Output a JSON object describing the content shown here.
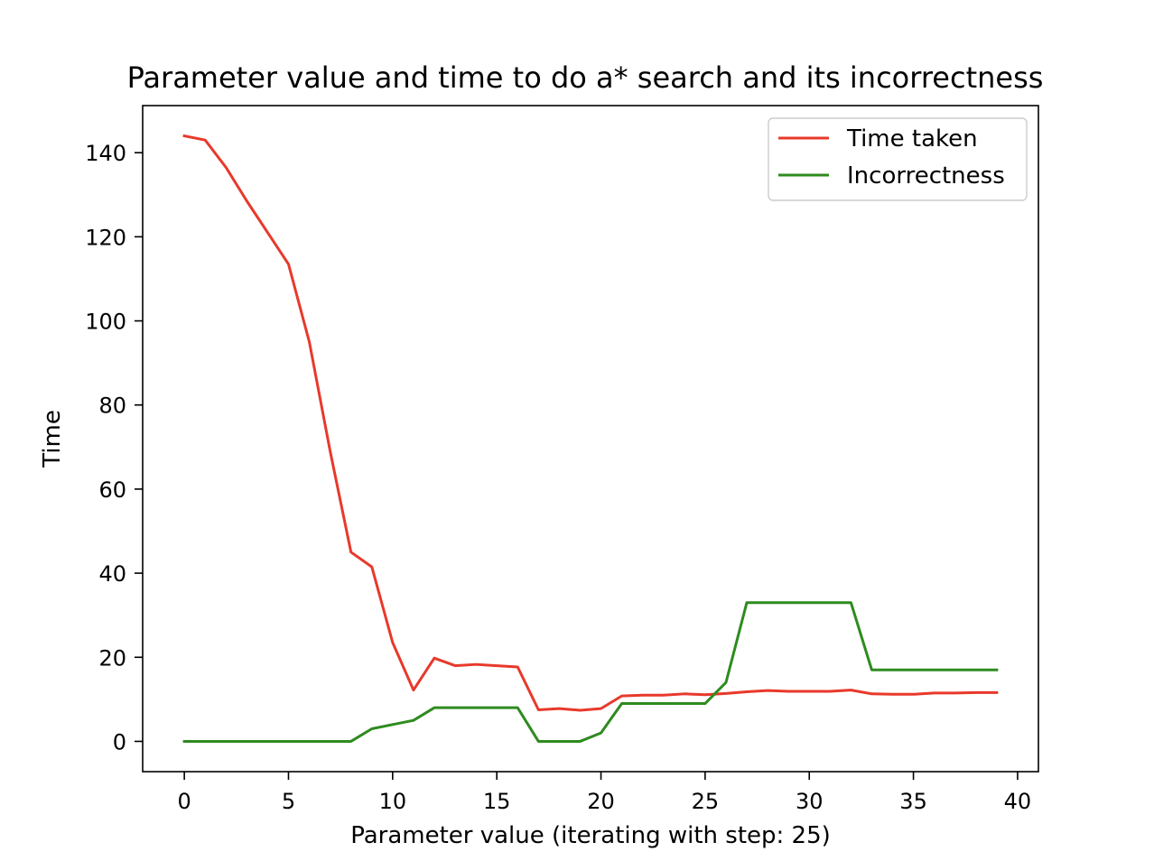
{
  "chart_data": {
    "type": "line",
    "title": "Parameter value and time to do a* search and its incorrectness",
    "xlabel": "Parameter value (iterating with step: 25)",
    "ylabel": "Time",
    "xlim": [
      -2,
      41
    ],
    "ylim": [
      -7.2,
      151.2
    ],
    "xticks": [
      0,
      5,
      10,
      15,
      20,
      25,
      30,
      35,
      40
    ],
    "yticks": [
      0,
      20,
      40,
      60,
      80,
      100,
      120,
      140
    ],
    "grid": false,
    "legend_position": "top-right",
    "x": [
      0,
      1,
      2,
      3,
      4,
      5,
      6,
      7,
      8,
      9,
      10,
      11,
      12,
      13,
      14,
      15,
      16,
      17,
      18,
      19,
      20,
      21,
      22,
      23,
      24,
      25,
      26,
      27,
      28,
      29,
      30,
      31,
      32,
      33,
      34,
      35,
      36,
      37,
      38,
      39
    ],
    "series": [
      {
        "name": "Time taken",
        "color": "#e8392b",
        "values": [
          144,
          143,
          136.5,
          128.5,
          121,
          113.5,
          95,
          69,
          45,
          41.5,
          23.5,
          12.2,
          19.8,
          18,
          18.3,
          18,
          17.7,
          7.5,
          7.8,
          7.4,
          7.8,
          10.8,
          11,
          11,
          11.3,
          11.1,
          11.4,
          11.8,
          12.1,
          11.9,
          11.9,
          11.9,
          12.2,
          11.3,
          11.2,
          11.2,
          11.5,
          11.5,
          11.6,
          11.6
        ]
      },
      {
        "name": "Incorrectness",
        "color": "#2e8b1f",
        "values": [
          0,
          0,
          0,
          0,
          0,
          0,
          0,
          0,
          0,
          3,
          4,
          5,
          8,
          8,
          8,
          8,
          8,
          0,
          0,
          0,
          2,
          9,
          9,
          9,
          9,
          9,
          14,
          33,
          33,
          33,
          33,
          33,
          33,
          17,
          17,
          17,
          17,
          17,
          17,
          17
        ]
      }
    ]
  }
}
